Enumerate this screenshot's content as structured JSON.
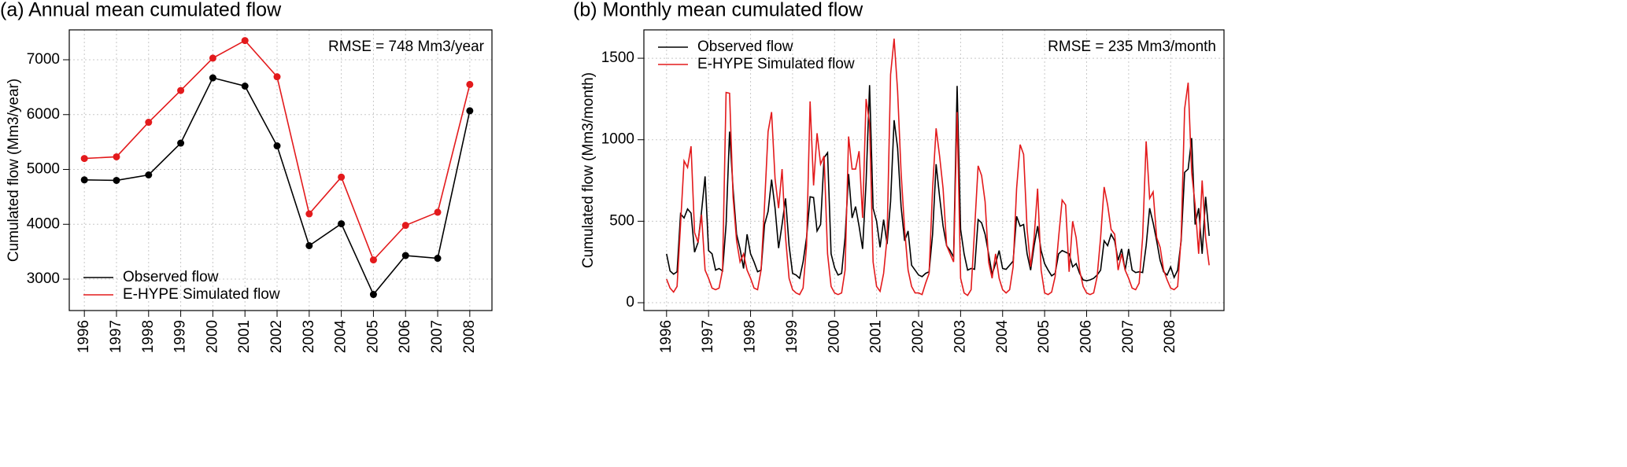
{
  "chart_data": [
    {
      "type": "line",
      "title": "(a) Annual mean cumulated flow",
      "y_label": "Cumulated flow (Mm3/year)",
      "annotation": "RMSE = 748 Mm3/year",
      "x": [
        1996,
        1997,
        1998,
        1999,
        2000,
        2001,
        2002,
        2003,
        2004,
        2005,
        2006,
        2007,
        2008
      ],
      "series": [
        {
          "name": "Observed flow",
          "color": "#000000",
          "values": [
            4810,
            4800,
            4900,
            5480,
            6670,
            6520,
            5430,
            3610,
            4010,
            2720,
            3430,
            3380,
            6070
          ]
        },
        {
          "name": "E-HYPE Simulated flow",
          "color": "#e31a1c",
          "values": [
            5200,
            5230,
            5860,
            6440,
            7030,
            7350,
            6690,
            4190,
            4860,
            3350,
            3980,
            4220,
            6550
          ]
        }
      ],
      "markers": true,
      "xlim": [
        1995.53,
        2008.69
      ],
      "xticks": [
        1996,
        1997,
        1998,
        1999,
        2000,
        2001,
        2002,
        2003,
        2004,
        2005,
        2006,
        2007,
        2008
      ],
      "ylim": [
        2427,
        7545
      ],
      "yticks": [
        3000,
        4000,
        5000,
        6000,
        7000
      ],
      "grid": true,
      "legend": "bottom-left"
    },
    {
      "type": "line",
      "title": "(b) Monthly mean cumulated flow",
      "y_label": "Cumulated flow (Mm3/month)",
      "annotation": "RMSE = 235 Mm3/month",
      "x": [
        1996,
        1996.083,
        1996.167,
        1996.25,
        1996.333,
        1996.417,
        1996.5,
        1996.583,
        1996.667,
        1996.75,
        1996.833,
        1996.917,
        1997,
        1997.083,
        1997.167,
        1997.25,
        1997.333,
        1997.417,
        1997.5,
        1997.583,
        1997.667,
        1997.75,
        1997.833,
        1997.917,
        1998,
        1998.083,
        1998.167,
        1998.25,
        1998.333,
        1998.417,
        1998.5,
        1998.583,
        1998.667,
        1998.75,
        1998.833,
        1998.917,
        1999,
        1999.083,
        1999.167,
        1999.25,
        1999.333,
        1999.417,
        1999.5,
        1999.583,
        1999.667,
        1999.75,
        1999.833,
        1999.917,
        2000,
        2000.083,
        2000.167,
        2000.25,
        2000.333,
        2000.417,
        2000.5,
        2000.583,
        2000.667,
        2000.75,
        2000.833,
        2000.917,
        2001,
        2001.083,
        2001.167,
        2001.25,
        2001.333,
        2001.417,
        2001.5,
        2001.583,
        2001.667,
        2001.75,
        2001.833,
        2001.917,
        2002,
        2002.083,
        2002.167,
        2002.25,
        2002.333,
        2002.417,
        2002.5,
        2002.583,
        2002.667,
        2002.75,
        2002.833,
        2002.917,
        2003,
        2003.083,
        2003.167,
        2003.25,
        2003.333,
        2003.417,
        2003.5,
        2003.583,
        2003.667,
        2003.75,
        2003.833,
        2003.917,
        2004,
        2004.083,
        2004.167,
        2004.25,
        2004.333,
        2004.417,
        2004.5,
        2004.583,
        2004.667,
        2004.75,
        2004.833,
        2004.917,
        2005,
        2005.083,
        2005.167,
        2005.25,
        2005.333,
        2005.417,
        2005.5,
        2005.583,
        2005.667,
        2005.75,
        2005.833,
        2005.917,
        2006,
        2006.083,
        2006.167,
        2006.25,
        2006.333,
        2006.417,
        2006.5,
        2006.583,
        2006.667,
        2006.75,
        2006.833,
        2006.917,
        2007,
        2007.083,
        2007.167,
        2007.25,
        2007.333,
        2007.417,
        2007.5,
        2007.583,
        2007.667,
        2007.75,
        2007.833,
        2007.917,
        2008,
        2008.083,
        2008.167,
        2008.25,
        2008.333,
        2008.417,
        2008.5,
        2008.583,
        2008.667,
        2008.75,
        2008.833,
        2008.917
      ],
      "series": [
        {
          "name": "Observed flow",
          "color": "#000000",
          "values": [
            300,
            195,
            175,
            190,
            545,
            520,
            575,
            550,
            310,
            370,
            560,
            775,
            320,
            300,
            200,
            210,
            195,
            480,
            1050,
            700,
            420,
            330,
            210,
            420,
            300,
            250,
            190,
            200,
            480,
            560,
            755,
            580,
            335,
            480,
            640,
            350,
            180,
            170,
            150,
            250,
            400,
            650,
            645,
            440,
            480,
            890,
            920,
            300,
            215,
            170,
            180,
            400,
            790,
            520,
            590,
            470,
            330,
            740,
            1335,
            580,
            500,
            340,
            510,
            360,
            620,
            1120,
            950,
            590,
            380,
            440,
            230,
            200,
            170,
            160,
            180,
            190,
            420,
            850,
            650,
            470,
            350,
            320,
            280,
            1330,
            450,
            300,
            200,
            210,
            205,
            510,
            490,
            420,
            300,
            175,
            240,
            320,
            210,
            205,
            230,
            255,
            530,
            470,
            480,
            300,
            200,
            350,
            470,
            320,
            240,
            200,
            165,
            180,
            300,
            320,
            310,
            300,
            220,
            240,
            180,
            140,
            135,
            140,
            150,
            170,
            200,
            380,
            350,
            420,
            380,
            260,
            330,
            200,
            330,
            200,
            185,
            190,
            185,
            350,
            580,
            490,
            380,
            260,
            190,
            170,
            220,
            155,
            200,
            380,
            800,
            820,
            1010,
            480,
            580,
            300,
            650,
            410
          ]
        },
        {
          "name": "E-HYPE Simulated flow",
          "color": "#e31a1c",
          "values": [
            145,
            90,
            65,
            100,
            480,
            870,
            830,
            960,
            430,
            370,
            540,
            200,
            150,
            90,
            80,
            90,
            200,
            1290,
            1285,
            650,
            380,
            250,
            300,
            200,
            150,
            90,
            80,
            200,
            600,
            1050,
            1170,
            760,
            580,
            820,
            400,
            150,
            80,
            60,
            50,
            90,
            350,
            1235,
            720,
            1040,
            850,
            900,
            300,
            100,
            60,
            50,
            60,
            200,
            1020,
            820,
            820,
            930,
            520,
            1250,
            1100,
            250,
            100,
            70,
            180,
            400,
            1400,
            1620,
            1300,
            800,
            450,
            200,
            100,
            60,
            60,
            50,
            120,
            180,
            700,
            1070,
            900,
            700,
            350,
            300,
            250,
            1170,
            150,
            60,
            45,
            80,
            450,
            840,
            780,
            620,
            250,
            150,
            300,
            150,
            80,
            60,
            80,
            220,
            700,
            970,
            910,
            450,
            220,
            400,
            700,
            200,
            60,
            50,
            65,
            160,
            400,
            630,
            600,
            190,
            500,
            400,
            200,
            100,
            60,
            50,
            60,
            160,
            400,
            710,
            600,
            450,
            420,
            200,
            300,
            200,
            150,
            90,
            80,
            120,
            400,
            990,
            640,
            680,
            400,
            340,
            200,
            140,
            90,
            80,
            100,
            400,
            1190,
            1350,
            800,
            600,
            300,
            750,
            400,
            230
          ]
        }
      ],
      "markers": false,
      "xlim": [
        1995.46,
        2009.27
      ],
      "xticks": [
        1996,
        1997,
        1998,
        1999,
        2000,
        2001,
        2002,
        2003,
        2004,
        2005,
        2006,
        2007,
        2008
      ],
      "ylim": [
        -48,
        1674
      ],
      "yticks": [
        0,
        500,
        1000,
        1500
      ],
      "grid": true,
      "legend": "top-left"
    }
  ]
}
